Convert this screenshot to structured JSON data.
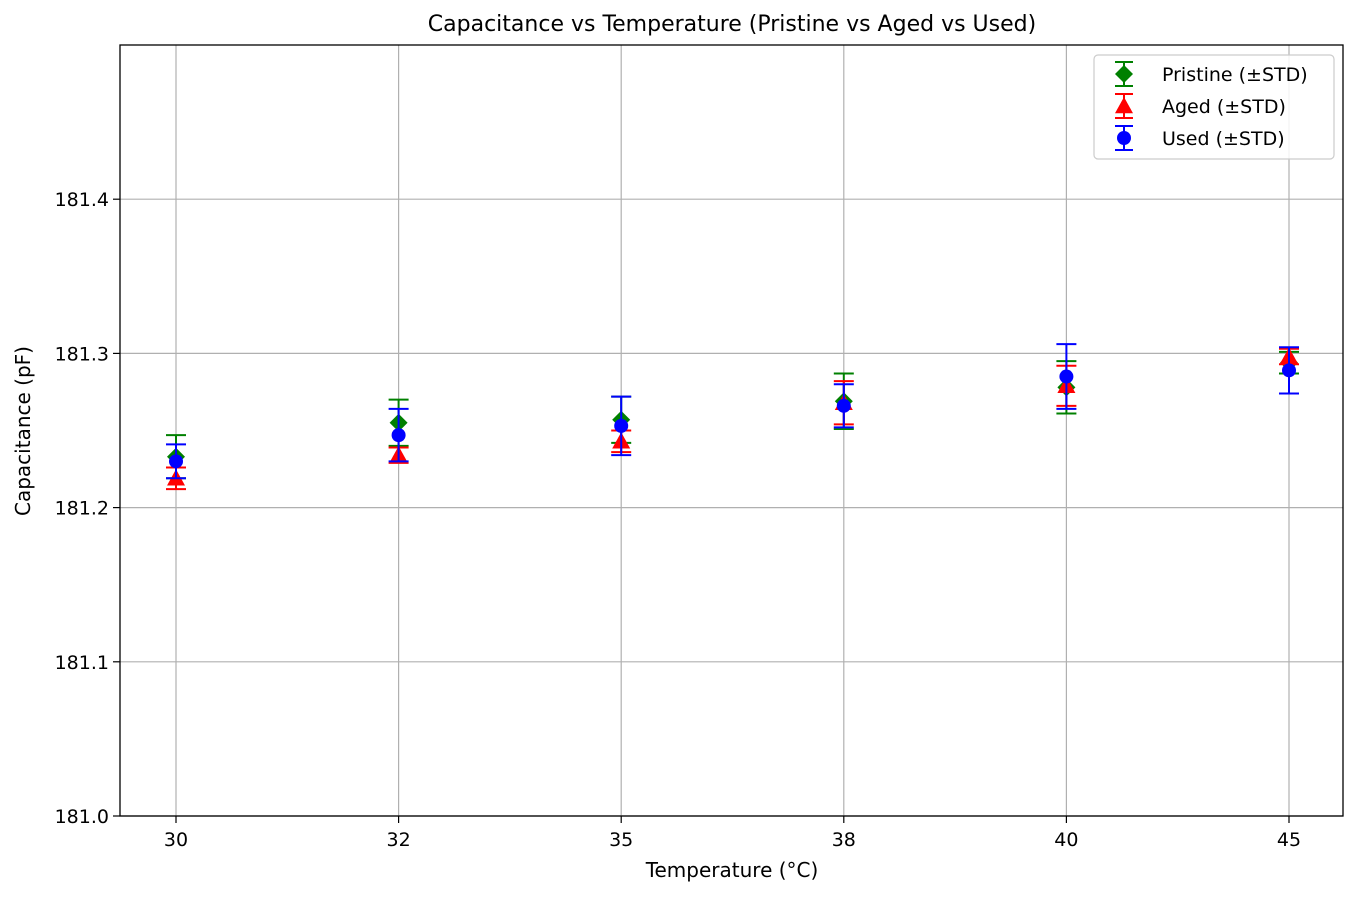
{
  "chart_data": {
    "type": "scatter",
    "title": "Capacitance vs Temperature (Pristine vs Aged vs Used)",
    "xlabel": "Temperature (°C)",
    "ylabel": "Capacitance (pF)",
    "categories": [
      "30",
      "32",
      "35",
      "38",
      "40",
      "45"
    ],
    "ylim": [
      181.0,
      181.5
    ],
    "yticks": [
      "181.0",
      "181.1",
      "181.2",
      "181.3",
      "181.4"
    ],
    "grid": true,
    "legend_position": "top-right",
    "error_bars": "±STD",
    "series": [
      {
        "name": "Pristine (±STD)",
        "color": "#008000",
        "marker": "diamond",
        "values": [
          181.233,
          181.255,
          181.257,
          181.269,
          181.278,
          181.294
        ],
        "std": [
          0.014,
          0.015,
          0.015,
          0.018,
          0.017,
          0.007
        ]
      },
      {
        "name": "Aged (±STD)",
        "color": "#ff0000",
        "marker": "triangle",
        "values": [
          181.219,
          181.234,
          181.243,
          181.268,
          181.279,
          181.298
        ],
        "std": [
          0.007,
          0.005,
          0.007,
          0.014,
          0.013,
          0.005
        ]
      },
      {
        "name": "Used (±STD)",
        "color": "#0000ff",
        "marker": "circle",
        "values": [
          181.23,
          181.247,
          181.253,
          181.266,
          181.285,
          181.289
        ],
        "std": [
          0.011,
          0.017,
          0.019,
          0.014,
          0.021,
          0.015
        ]
      }
    ]
  }
}
